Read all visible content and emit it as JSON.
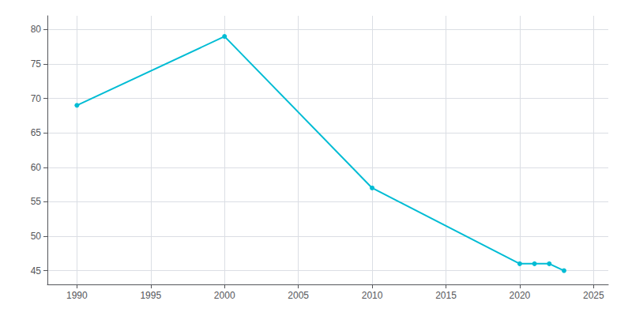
{
  "chart_data": {
    "type": "line",
    "x": [
      1990,
      2000,
      2010,
      2020,
      2021,
      2022,
      2023
    ],
    "values": [
      69,
      79,
      57,
      46,
      46,
      46,
      45
    ],
    "color": "#00BCD4",
    "marker": "circle",
    "xlim": [
      1988,
      2026
    ],
    "ylim": [
      43,
      82
    ],
    "xticks": [
      1990,
      1995,
      2000,
      2005,
      2010,
      2015,
      2020,
      2025
    ],
    "yticks": [
      45,
      50,
      55,
      60,
      65,
      70,
      75,
      80
    ],
    "grid": true
  }
}
